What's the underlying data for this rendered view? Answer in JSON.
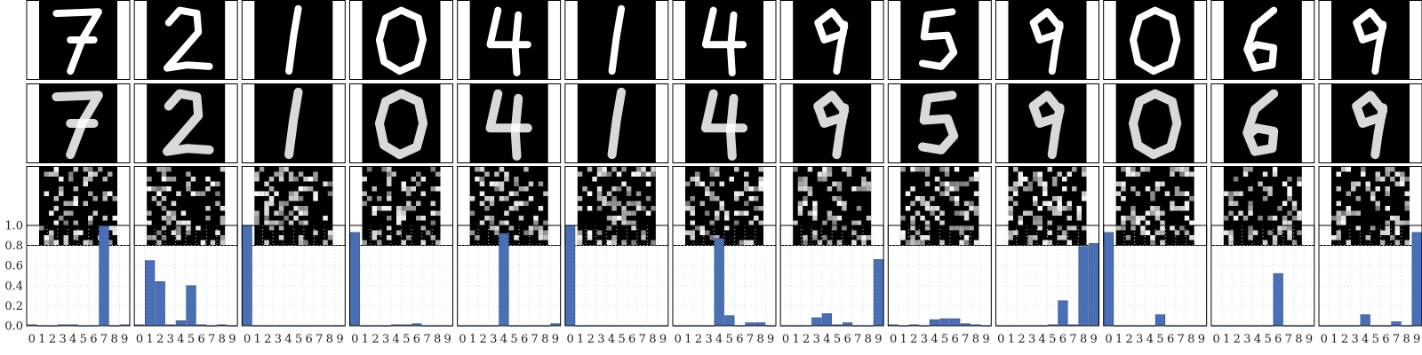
{
  "chart_data": {
    "type": "bar",
    "description_rows": [
      "original digit image",
      "reconstruction",
      "latent code",
      "class probability bars"
    ],
    "categories": [
      "0",
      "1",
      "2",
      "3",
      "4",
      "5",
      "6",
      "7",
      "8",
      "9"
    ],
    "ylim": [
      0,
      1.0
    ],
    "yticks": [
      "0.0",
      "0.2",
      "0.4",
      "0.6",
      "0.8",
      "1.0"
    ],
    "grid": true,
    "panels": [
      {
        "digit": "7",
        "values": [
          0.01,
          0.0,
          0.0,
          0.01,
          0.01,
          0.0,
          0.0,
          1.0,
          0.0,
          0.01
        ]
      },
      {
        "digit": "2",
        "values": [
          0.01,
          0.65,
          0.44,
          0.01,
          0.05,
          0.4,
          0.01,
          0.0,
          0.01,
          0.0
        ]
      },
      {
        "digit": "1",
        "values": [
          1.0,
          0.0,
          0.0,
          0.0,
          0.0,
          0.0,
          0.0,
          0.0,
          0.0,
          0.0
        ]
      },
      {
        "digit": "0",
        "values": [
          0.93,
          0.0,
          0.0,
          0.0,
          0.01,
          0.01,
          0.02,
          0.0,
          0.0,
          0.0
        ]
      },
      {
        "digit": "4",
        "values": [
          0.0,
          0.0,
          0.0,
          0.0,
          0.92,
          0.0,
          0.0,
          0.0,
          0.0,
          0.02
        ]
      },
      {
        "digit": "1",
        "values": [
          1.0,
          0.0,
          0.0,
          0.0,
          0.0,
          0.0,
          0.0,
          0.0,
          0.0,
          0.0
        ]
      },
      {
        "digit": "4",
        "values": [
          0.0,
          0.0,
          0.0,
          0.0,
          0.87,
          0.1,
          0.0,
          0.03,
          0.03,
          0.0
        ]
      },
      {
        "digit": "9",
        "values": [
          0.0,
          0.0,
          0.0,
          0.08,
          0.12,
          0.01,
          0.03,
          0.0,
          0.0,
          0.66
        ]
      },
      {
        "digit": "5",
        "values": [
          0.01,
          0.0,
          0.01,
          0.0,
          0.06,
          0.07,
          0.07,
          0.02,
          0.01,
          0.0
        ]
      },
      {
        "digit": "9",
        "values": [
          0.0,
          0.0,
          0.0,
          0.0,
          0.0,
          0.01,
          0.25,
          0.01,
          0.79,
          0.82
        ]
      },
      {
        "digit": "0",
        "values": [
          0.93,
          0.0,
          0.0,
          0.0,
          0.0,
          0.11,
          0.0,
          0.0,
          0.0,
          0.0
        ]
      },
      {
        "digit": "6",
        "values": [
          0.0,
          0.0,
          0.0,
          0.0,
          0.0,
          0.0,
          0.52,
          0.0,
          0.0,
          0.0
        ]
      },
      {
        "digit": "9",
        "values": [
          0.0,
          0.0,
          0.0,
          0.0,
          0.11,
          0.0,
          0.0,
          0.04,
          0.0,
          0.93
        ]
      }
    ],
    "colors": {
      "bar": "#4a6fb5",
      "bar_edge": "#2f4f8a",
      "image_bg": "#000000",
      "stroke": "#ffffff"
    }
  }
}
